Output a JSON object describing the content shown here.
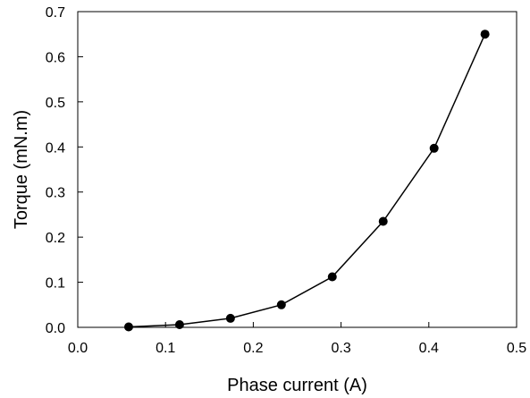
{
  "chart_data": {
    "type": "line",
    "title": "",
    "xlabel": "Phase current (A)",
    "ylabel": "Torque (mN.m)",
    "xlim": [
      0.0,
      0.5
    ],
    "ylim": [
      0.0,
      0.7
    ],
    "x_ticks": [
      "0.0",
      "0.1",
      "0.2",
      "0.3",
      "0.4",
      "0.5"
    ],
    "y_ticks": [
      "0.0",
      "0.1",
      "0.2",
      "0.3",
      "0.4",
      "0.5",
      "0.6",
      "0.7"
    ],
    "grid": false,
    "legend": "none",
    "marker": "filled-circle",
    "line_color": "#000000",
    "series": [
      {
        "x": [
          0.058,
          0.116,
          0.174,
          0.232,
          0.29,
          0.348,
          0.406,
          0.464
        ],
        "y": [
          0.001,
          0.006,
          0.02,
          0.05,
          0.112,
          0.235,
          0.397,
          0.65
        ]
      }
    ]
  }
}
